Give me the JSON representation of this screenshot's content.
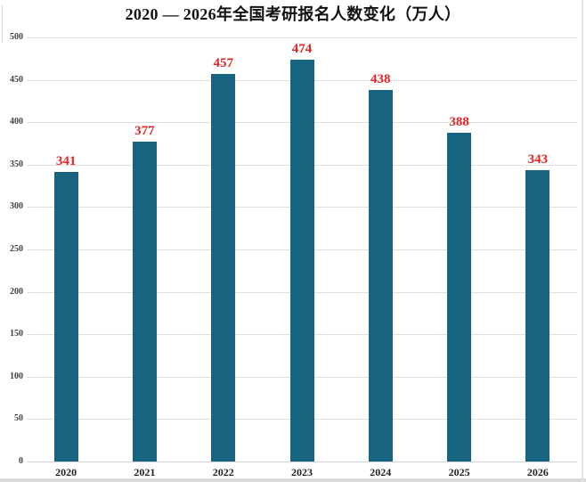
{
  "page": {
    "background_color": "#ffffff"
  },
  "chart": {
    "bar_color": "#186380",
    "value_label_color": "#e02626",
    "gridline_color": "#dedede",
    "axis_line_color": "#d2d2d2",
    "ytick_text_color": "#404040",
    "xtick_text_color": "#222222",
    "title_text_color": "#111111"
  },
  "chart_data": {
    "type": "bar",
    "title": "2020 — 2026年全国考研报名人数变化（万人）",
    "categories": [
      "2020",
      "2021",
      "2022",
      "2023",
      "2024",
      "2025",
      "2026"
    ],
    "values": [
      341,
      377,
      457,
      474,
      438,
      388,
      343
    ],
    "xlabel": "",
    "ylabel": "",
    "ylim": [
      0,
      500
    ],
    "yticks": [
      0,
      50,
      100,
      150,
      200,
      250,
      300,
      350,
      400,
      450,
      500
    ],
    "grid": true,
    "legend": false,
    "value_labels_shown": true,
    "unit": "万人"
  }
}
